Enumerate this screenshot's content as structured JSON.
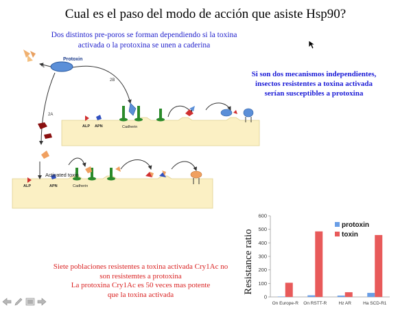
{
  "slide": {
    "title": "Cual es el paso del modo de acción que asiste Hsp90?",
    "subtitle_line1": "Dos distintos pre-poros se forman dependiendo si la toxina",
    "subtitle_line2": "activada o la protoxina se unen a caderina",
    "note_line1": "Si son dos mecanismos independientes,",
    "note_line2": "insectos resistentes a toxina activada",
    "note_line3": "serían susceptibles a protoxina",
    "red_line1": "Siete poblaciones resistentes a toxina activada Cry1Ac no",
    "red_line2": "son resistemtes a protoxina",
    "red_line3": "La protoxina Cry1Ac es  50 veces mas potente",
    "red_line4": "que la toxina activada"
  },
  "diagram": {
    "protoxin_label": "Protoxin",
    "path_1": "1",
    "path_2a": "2A",
    "path_2b": "2B",
    "alp_label": "ALP",
    "apn_label": "APN",
    "cadherin_label": "Cadherin",
    "activated_toxin_label": "Activated toxin",
    "alp_label_b": "ALP",
    "apn_label_b": "APN",
    "cadherin_label_b": "Cadherin"
  },
  "chart_data": {
    "type": "bar",
    "categories": [
      "On Europe-R",
      "On RSTT-R",
      "Hz AR",
      "Ha SCD-R1"
    ],
    "series": [
      {
        "name": "protoxin",
        "values": [
          3,
          12,
          10,
          30
        ],
        "color": "#6a9ee6"
      },
      {
        "name": "toxin",
        "values": [
          105,
          485,
          35,
          458
        ],
        "color": "#e85a5a"
      }
    ],
    "ylabel": "Resistance ratio",
    "xlabel": "",
    "ylim": [
      0,
      600
    ],
    "yticks": [
      "0",
      "100",
      "200",
      "300",
      "400",
      "500",
      "600"
    ],
    "legend_position": "top-right",
    "grid": false
  },
  "toolbar": {
    "icons": [
      "back-arrow-icon",
      "pen-icon",
      "menu-icon",
      "forward-arrow-icon"
    ]
  }
}
